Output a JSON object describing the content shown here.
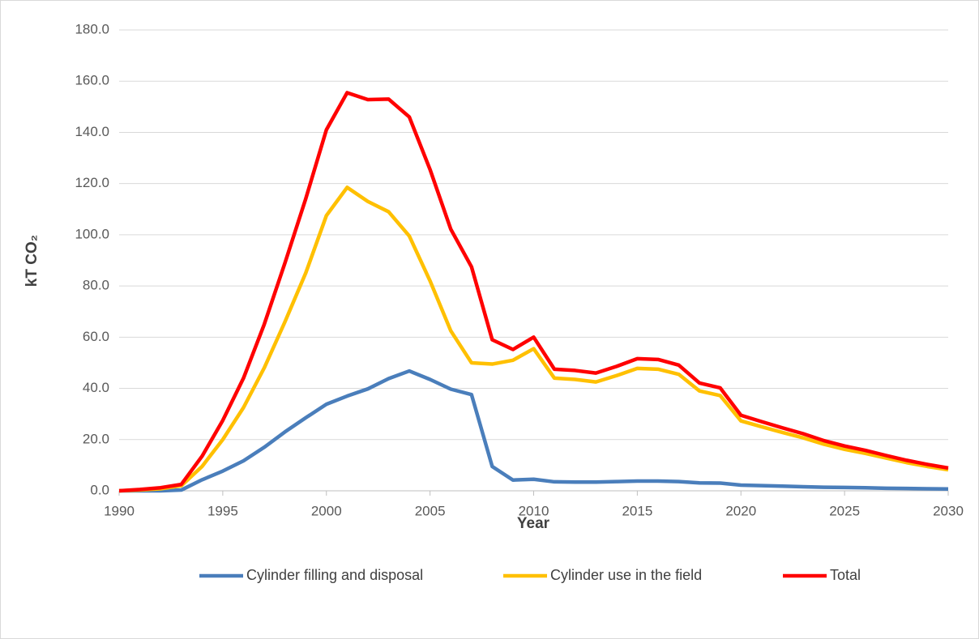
{
  "chart_data": {
    "type": "line",
    "x_label": "Year",
    "y_label": "kT CO₂",
    "x": [
      1990,
      1991,
      1992,
      1993,
      1994,
      1995,
      1996,
      1997,
      1998,
      1999,
      2000,
      2001,
      2002,
      2003,
      2004,
      2005,
      2006,
      2007,
      2008,
      2009,
      2010,
      2011,
      2012,
      2013,
      2014,
      2015,
      2016,
      2017,
      2018,
      2019,
      2020,
      2021,
      2022,
      2023,
      2024,
      2025,
      2026,
      2027,
      2028,
      2029,
      2030
    ],
    "series": [
      {
        "name": "Cylinder filling and disposal",
        "color": "#4a7ebb",
        "values": [
          0,
          0,
          0,
          0.3,
          4.3,
          7.7,
          11.7,
          17,
          23,
          28.5,
          33.8,
          37,
          39.8,
          43.8,
          46.8,
          43.5,
          39.7,
          37.6,
          9.5,
          4.2,
          4.5,
          3.5,
          3.4,
          3.4,
          3.6,
          3.8,
          3.8,
          3.6,
          3.1,
          3.0,
          2.2,
          2.0,
          1.8,
          1.6,
          1.4,
          1.3,
          1.2,
          1.0,
          0.9,
          0.8,
          0.7
        ]
      },
      {
        "name": "Cylinder use in the field",
        "color": "#ffc000",
        "values": [
          0,
          0.3,
          0.8,
          2,
          9.5,
          20,
          32.5,
          48,
          66,
          85,
          107.5,
          118.5,
          113,
          109,
          99.5,
          82,
          62.5,
          50,
          49.5,
          51,
          55.5,
          44,
          43.5,
          42.5,
          45,
          47.8,
          47.5,
          45.5,
          39,
          37.2,
          27.3,
          25,
          22.8,
          20.7,
          18.2,
          16.2,
          14.6,
          12.8,
          11,
          9.5,
          8.2
        ]
      },
      {
        "name": "Total",
        "color": "#ff0000",
        "values": [
          0,
          0.5,
          1.2,
          2.5,
          13.5,
          27.5,
          44,
          65,
          89,
          114,
          141,
          155.5,
          152.8,
          153,
          146,
          125.5,
          102.2,
          87.5,
          59,
          55.2,
          60,
          47.5,
          47,
          46,
          48.6,
          51.6,
          51.3,
          49.1,
          42.1,
          40.2,
          29.5,
          27,
          24.6,
          22.3,
          19.6,
          17.5,
          15.8,
          13.8,
          11.9,
          10.3,
          8.9
        ]
      }
    ],
    "xlim": [
      1990,
      2030
    ],
    "xticks": [
      1990,
      1995,
      2000,
      2005,
      2010,
      2015,
      2020,
      2025,
      2030
    ],
    "ylim": [
      0,
      180
    ],
    "yticks": [
      {
        "value": 0,
        "label": "0.0"
      },
      {
        "value": 20,
        "label": "20.0"
      },
      {
        "value": 40,
        "label": "40.0"
      },
      {
        "value": 60,
        "label": "60.0"
      },
      {
        "value": 80,
        "label": "80.0"
      },
      {
        "value": 100,
        "label": "100.0"
      },
      {
        "value": 120,
        "label": "120.0"
      },
      {
        "value": 140,
        "label": "140.0"
      },
      {
        "value": 160,
        "label": "160.0"
      },
      {
        "value": 180,
        "label": "180.0"
      }
    ],
    "grid": true,
    "legend": "bottom"
  }
}
